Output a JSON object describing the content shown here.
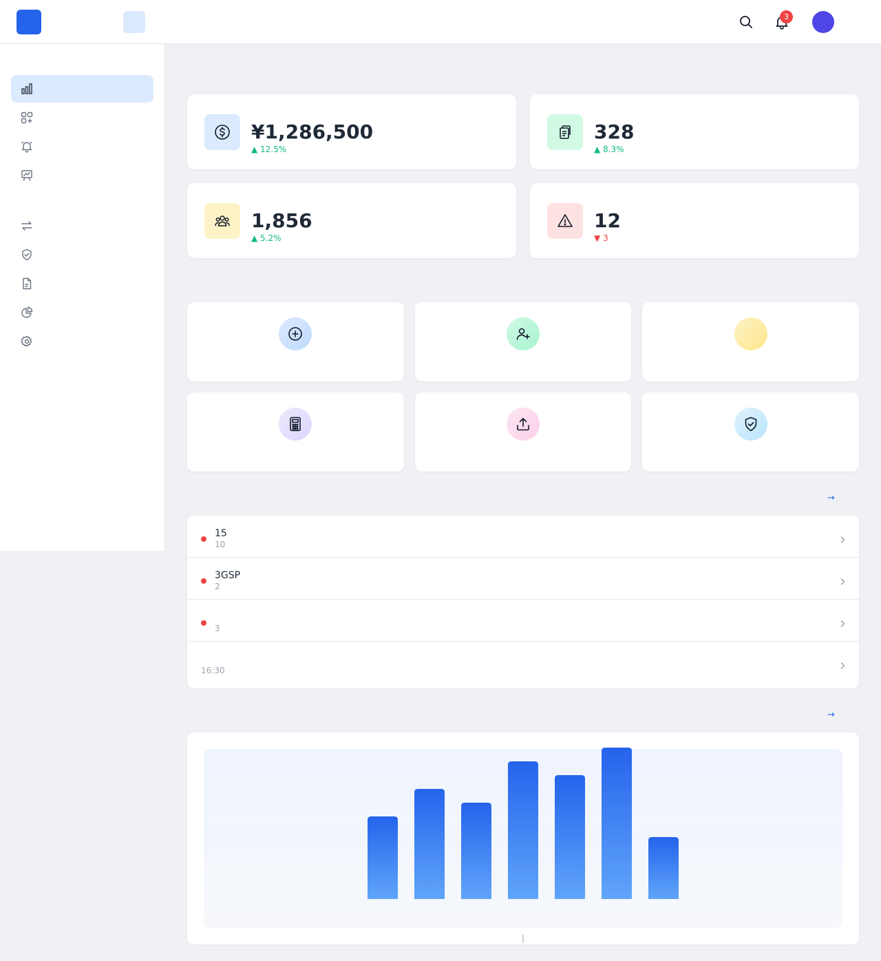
{
  "header": {
    "logo_glyph": "",
    "app_title": "",
    "nav": [
      {
        "label": "",
        "active": true
      },
      {
        "label": "",
        "active": false
      },
      {
        "label": "",
        "active": false
      },
      {
        "label": "",
        "active": false
      },
      {
        "label": "",
        "active": false
      },
      {
        "label": "",
        "active": false
      }
    ],
    "notification_count": "3",
    "avatar_glyph": "",
    "username": ""
  },
  "sidebar": {
    "section1": "",
    "section2": "",
    "items": [
      {
        "label": "",
        "icon": "bar-chart-icon",
        "active": true
      },
      {
        "label": "",
        "icon": "apps-add-icon",
        "active": false
      },
      {
        "label": "",
        "icon": "bell-icon",
        "active": false
      },
      {
        "label": "",
        "icon": "presentation-chart-icon",
        "active": false
      },
      {
        "label": "",
        "icon": "swap-arrows-icon",
        "active": false
      },
      {
        "label": "",
        "icon": "shield-check-icon",
        "active": false
      },
      {
        "label": "",
        "icon": "document-icon",
        "active": false
      },
      {
        "label": "",
        "icon": "pie-chart-icon",
        "active": false
      },
      {
        "label": "",
        "icon": "gear-icon",
        "active": false
      }
    ]
  },
  "main": {
    "page_title": "",
    "stats": [
      {
        "label": "",
        "value": "¥1,286,500",
        "change": "▲ 12.5% ",
        "trend": "up",
        "icon": "dollar-icon",
        "icon_bg": "#dbeafe"
      },
      {
        "label": "",
        "value": "328",
        "change": "▲ 8.3% ",
        "trend": "up",
        "icon": "clipboard-icon",
        "icon_bg": "#d1fae5"
      },
      {
        "label": "",
        "value": "1,856",
        "change": "▲ 5.2% ",
        "trend": "up",
        "icon": "users-icon",
        "icon_bg": "#fef3c7"
      },
      {
        "label": "",
        "value": "12",
        "change": "▼ 3 ",
        "trend": "down",
        "icon": "warning-icon",
        "icon_bg": "#fee2e2"
      }
    ],
    "quick_actions_title": "",
    "quick_actions": [
      {
        "label": "",
        "icon": "plus-circle-icon"
      },
      {
        "label": "",
        "icon": "user-plus-icon"
      },
      {
        "label": "",
        "icon": "none"
      },
      {
        "label": "",
        "icon": "calculator-icon"
      },
      {
        "label": "",
        "icon": "upload-icon"
      },
      {
        "label": "",
        "icon": "shield-check-icon"
      }
    ],
    "todos_title": "",
    "todos_link": " →",
    "todos": [
      {
        "title": " 15 ",
        "time": "10",
        "urgent": true
      },
      {
        "title": "3GSP",
        "time": "2",
        "urgent": true
      },
      {
        "title": "",
        "time": "3",
        "urgent": true
      },
      {
        "title": "",
        "time": " 16:30",
        "urgent": false
      }
    ],
    "chart_title": "",
    "chart_link": " →",
    "chart_caption": " | "
  },
  "chart_data": {
    "type": "bar",
    "categories": [
      "",
      "",
      "",
      "",
      "",
      "",
      ""
    ],
    "values": [
      120,
      160,
      140,
      200,
      180,
      220,
      90
    ],
    "title": "",
    "xlabel": "",
    "ylabel": "",
    "ylim": [
      0,
      220
    ],
    "grid": false,
    "bar_color_top": "#2563eb",
    "bar_color_bottom": "#60a5fa"
  }
}
